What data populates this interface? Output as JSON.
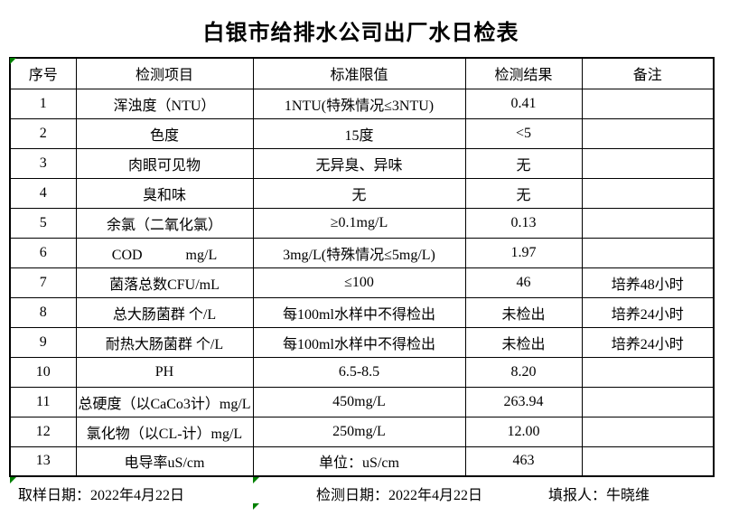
{
  "title": "白银市给排水公司出厂水日检表",
  "table": {
    "headers": [
      "序号",
      "检测项目",
      "标准限值",
      "检测结果",
      "备注"
    ],
    "rows": [
      [
        "1",
        "浑浊度（NTU）",
        "1NTU(特殊情况≤3NTU)",
        "0.41",
        ""
      ],
      [
        "2",
        "色度",
        "15度",
        "<5",
        ""
      ],
      [
        "3",
        "肉眼可见物",
        "无异臭、异味",
        "无",
        ""
      ],
      [
        "4",
        "臭和味",
        "无",
        "无",
        ""
      ],
      [
        "5",
        "余氯（二氧化氯）",
        "≥0.1mg/L",
        "0.13",
        ""
      ],
      [
        "6",
        "COD　　　mg/L",
        "3mg/L(特殊情况≤5mg/L)",
        "1.97",
        ""
      ],
      [
        "7",
        "菌落总数CFU/mL",
        "≤100",
        "46",
        "培养48小时"
      ],
      [
        "8",
        "总大肠菌群 个/L",
        "每100ml水样中不得检出",
        "未检出",
        "培养24小时"
      ],
      [
        "9",
        "耐热大肠菌群 个/L",
        "每100ml水样中不得检出",
        "未检出",
        "培养24小时"
      ],
      [
        "10",
        "PH",
        "6.5-8.5",
        "8.20",
        ""
      ],
      [
        "11",
        "总硬度（以CaCo3计）mg/L",
        "450mg/L",
        "263.94",
        ""
      ],
      [
        "12",
        "氯化物（以CL-计）mg/L",
        "250mg/L",
        "12.00",
        ""
      ],
      [
        "13",
        "电导率uS/cm",
        "单位：uS/cm",
        "463",
        ""
      ]
    ]
  },
  "footer": {
    "sampling_date": "取样日期：2022年4月22日",
    "test_date": "检测日期：2022年4月22日",
    "reporter": "填报人：牛晓维"
  },
  "icons": {
    "error_indicator": "green-corner-triangle"
  },
  "colors": {
    "background": "#ffffff",
    "border": "#000000",
    "title_text": "#000000",
    "error_indicator": "#008000"
  }
}
